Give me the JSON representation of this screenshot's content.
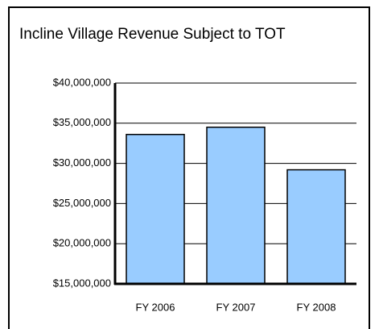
{
  "chart_data": {
    "type": "bar",
    "title": "Incline Village Revenue Subject to TOT",
    "categories": [
      "FY 2006",
      "FY 2007",
      "FY 2008"
    ],
    "values": [
      33600000,
      34500000,
      29200000
    ],
    "color": "#99ccff",
    "ylim": [
      15000000,
      40000000
    ],
    "yticks": [
      {
        "value": 15000000,
        "label": "$15,000,000"
      },
      {
        "value": 20000000,
        "label": "$20,000,000"
      },
      {
        "value": 25000000,
        "label": "$25,000,000"
      },
      {
        "value": 30000000,
        "label": "$30,000,000"
      },
      {
        "value": 35000000,
        "label": "$35,000,000"
      },
      {
        "value": 40000000,
        "label": "$40,000,000"
      }
    ],
    "grid": true
  }
}
